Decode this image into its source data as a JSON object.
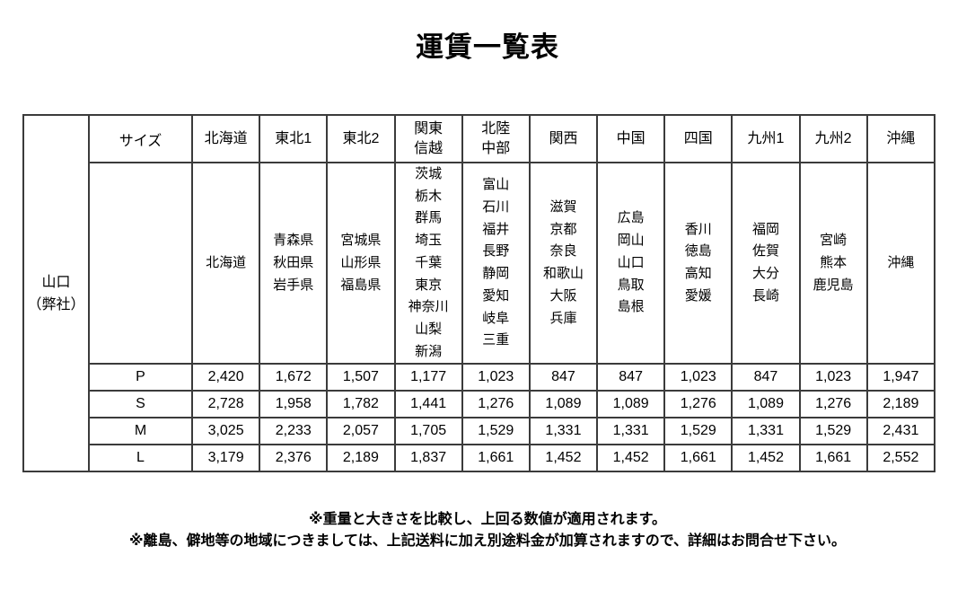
{
  "title": "運賃一覧表",
  "table": {
    "origin_label": [
      "山口",
      "（弊社）"
    ],
    "size_header": "サイズ",
    "regions": [
      {
        "label": "北海道",
        "prefectures": [
          "北海道"
        ]
      },
      {
        "label": "東北1",
        "prefectures": [
          "青森県",
          "秋田県",
          "岩手県"
        ]
      },
      {
        "label": "東北2",
        "prefectures": [
          "宮城県",
          "山形県",
          "福島県"
        ]
      },
      {
        "label": [
          "関東",
          "信越"
        ],
        "prefectures": [
          "茨城",
          "栃木",
          "群馬",
          "埼玉",
          "千葉",
          "東京",
          "神奈川",
          "山梨",
          "新潟"
        ]
      },
      {
        "label": [
          "北陸",
          "中部"
        ],
        "prefectures": [
          "富山",
          "石川",
          "福井",
          "長野",
          "静岡",
          "愛知",
          "岐阜",
          "三重"
        ]
      },
      {
        "label": "関西",
        "prefectures": [
          "滋賀",
          "京都",
          "奈良",
          "和歌山",
          "大阪",
          "兵庫"
        ]
      },
      {
        "label": "中国",
        "prefectures": [
          "広島",
          "岡山",
          "山口",
          "鳥取",
          "島根"
        ]
      },
      {
        "label": "四国",
        "prefectures": [
          "香川",
          "徳島",
          "高知",
          "愛媛"
        ]
      },
      {
        "label": "九州1",
        "prefectures": [
          "福岡",
          "佐賀",
          "大分",
          "長崎"
        ]
      },
      {
        "label": "九州2",
        "prefectures": [
          "宮崎",
          "熊本",
          "鹿児島"
        ]
      },
      {
        "label": "沖縄",
        "prefectures": [
          "沖縄"
        ]
      }
    ],
    "rows": [
      {
        "size": "P",
        "values": [
          "2,420",
          "1,672",
          "1,507",
          "1,177",
          "1,023",
          "847",
          "847",
          "1,023",
          "847",
          "1,023",
          "1,947"
        ]
      },
      {
        "size": "S",
        "values": [
          "2,728",
          "1,958",
          "1,782",
          "1,441",
          "1,276",
          "1,089",
          "1,089",
          "1,276",
          "1,089",
          "1,276",
          "2,189"
        ]
      },
      {
        "size": "M",
        "values": [
          "3,025",
          "2,233",
          "2,057",
          "1,705",
          "1,529",
          "1,331",
          "1,331",
          "1,529",
          "1,331",
          "1,529",
          "2,431"
        ]
      },
      {
        "size": "L",
        "values": [
          "3,179",
          "2,376",
          "2,189",
          "1,837",
          "1,661",
          "1,452",
          "1,452",
          "1,661",
          "1,452",
          "1,661",
          "2,552"
        ]
      }
    ]
  },
  "notes": [
    "※重量と大きさを比較し、上回る数値が適用されます。",
    "※離島、僻地等の地域につきましては、上記送料に加え別途料金が加算されますので、詳細はお問合せ下さい。"
  ],
  "colors": {
    "origin_bg": "#d2f84f",
    "shaded_bg": "#fafad2",
    "border": "#3b3b3b"
  }
}
